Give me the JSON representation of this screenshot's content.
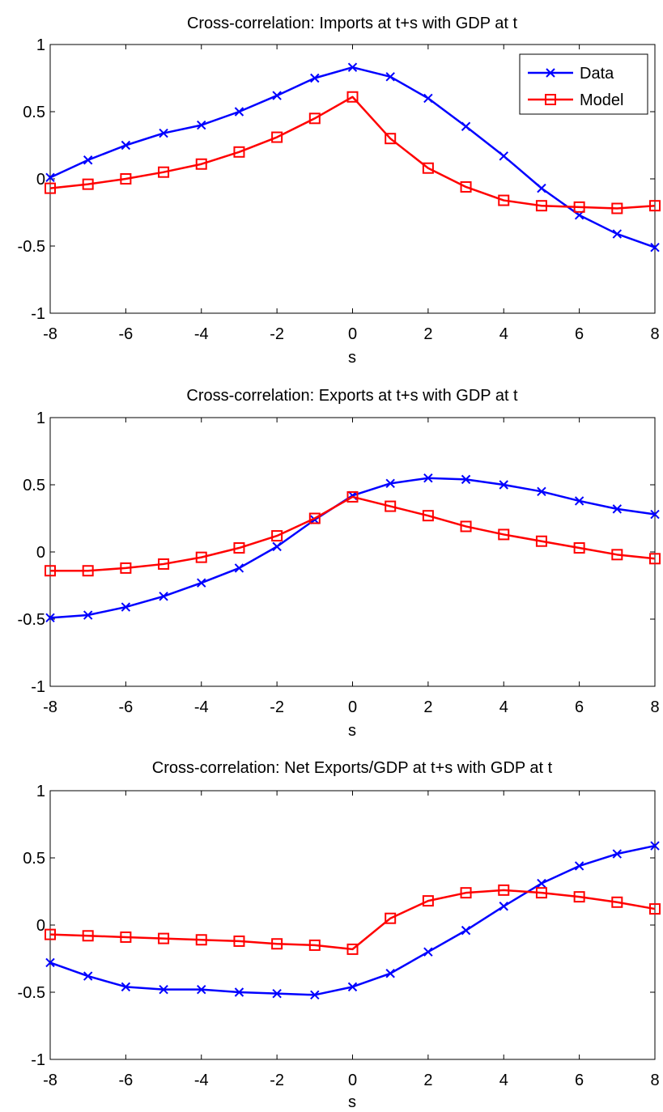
{
  "chart_data": [
    {
      "type": "line",
      "title": "Cross-correlation: Imports at t+s with GDP at t",
      "xlabel": "s",
      "ylabel": "",
      "xlim": [
        -8,
        8
      ],
      "ylim": [
        -1,
        1
      ],
      "xticks": [
        "-8",
        "-6",
        "-4",
        "-2",
        "0",
        "2",
        "4",
        "6",
        "8"
      ],
      "yticks": [
        "-1",
        "-0.5",
        "0",
        "0.5",
        "1"
      ],
      "grid": false,
      "legend_position": "top-right",
      "x": [
        -8,
        -7,
        -6,
        -5,
        -4,
        -3,
        -2,
        -1,
        0,
        1,
        2,
        3,
        4,
        5,
        6,
        7,
        8
      ],
      "series": [
        {
          "name": "Data",
          "color": "#0000ff",
          "marker": "x",
          "values": [
            0.01,
            0.14,
            0.25,
            0.34,
            0.4,
            0.5,
            0.62,
            0.75,
            0.83,
            0.76,
            0.6,
            0.39,
            0.17,
            -0.07,
            -0.27,
            -0.41,
            -0.51
          ]
        },
        {
          "name": "Model",
          "color": "#ff0000",
          "marker": "square",
          "values": [
            -0.07,
            -0.04,
            0.0,
            0.05,
            0.11,
            0.2,
            0.31,
            0.45,
            0.61,
            0.3,
            0.08,
            -0.06,
            -0.16,
            -0.2,
            -0.21,
            -0.22,
            -0.2
          ]
        }
      ]
    },
    {
      "type": "line",
      "title": "Cross-correlation: Exports at t+s with GDP at t",
      "xlabel": "s",
      "ylabel": "",
      "xlim": [
        -8,
        8
      ],
      "ylim": [
        -1,
        1
      ],
      "xticks": [
        "-8",
        "-6",
        "-4",
        "-2",
        "0",
        "2",
        "4",
        "6",
        "8"
      ],
      "yticks": [
        "-1",
        "-0.5",
        "0",
        "0.5",
        "1"
      ],
      "grid": false,
      "x": [
        -8,
        -7,
        -6,
        -5,
        -4,
        -3,
        -2,
        -1,
        0,
        1,
        2,
        3,
        4,
        5,
        6,
        7,
        8
      ],
      "series": [
        {
          "color": "#0000ff",
          "marker": "x",
          "values": [
            -0.49,
            -0.47,
            -0.41,
            -0.33,
            -0.23,
            -0.12,
            0.04,
            0.24,
            0.42,
            0.51,
            0.55,
            0.54,
            0.5,
            0.45,
            0.38,
            0.32,
            0.28
          ]
        },
        {
          "color": "#ff0000",
          "marker": "square",
          "values": [
            -0.14,
            -0.14,
            -0.12,
            -0.09,
            -0.04,
            0.03,
            0.12,
            0.25,
            0.41,
            0.34,
            0.27,
            0.19,
            0.13,
            0.08,
            0.03,
            -0.02,
            -0.05
          ]
        }
      ]
    },
    {
      "type": "line",
      "title": "Cross-correlation: Net Exports/GDP at t+s with GDP at t",
      "xlabel": "s",
      "ylabel": "",
      "xlim": [
        -8,
        8
      ],
      "ylim": [
        -1,
        1
      ],
      "xticks": [
        "-8",
        "-6",
        "-4",
        "-2",
        "0",
        "2",
        "4",
        "6",
        "8"
      ],
      "yticks": [
        "-1",
        "-0.5",
        "0",
        "0.5",
        "1"
      ],
      "grid": false,
      "x": [
        -8,
        -7,
        -6,
        -5,
        -4,
        -3,
        -2,
        -1,
        0,
        1,
        2,
        3,
        4,
        5,
        6,
        7,
        8
      ],
      "series": [
        {
          "color": "#0000ff",
          "marker": "x",
          "values": [
            -0.28,
            -0.38,
            -0.46,
            -0.48,
            -0.48,
            -0.5,
            -0.51,
            -0.52,
            -0.46,
            -0.36,
            -0.2,
            -0.04,
            0.14,
            0.31,
            0.44,
            0.53,
            0.59
          ]
        },
        {
          "color": "#ff0000",
          "marker": "square",
          "values": [
            -0.07,
            -0.08,
            -0.09,
            -0.1,
            -0.11,
            -0.12,
            -0.14,
            -0.15,
            -0.18,
            0.05,
            0.18,
            0.24,
            0.26,
            0.24,
            0.21,
            0.17,
            0.12
          ]
        }
      ]
    }
  ]
}
